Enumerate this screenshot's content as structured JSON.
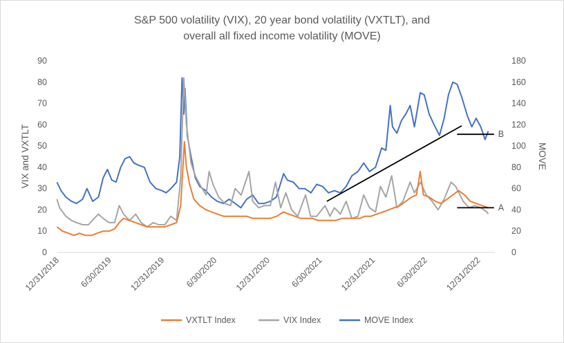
{
  "chart_data": {
    "type": "line",
    "title_line1": "S&P 500 volatility (VIX), 20 year bond volatility (VXTLT), and",
    "title_line2": "overall all fixed income volatility (MOVE)",
    "ylabel_left": "VIX and VXTLT",
    "ylabel_right": "MOVE",
    "ylim_left": [
      0,
      90
    ],
    "ylim_right": [
      0,
      180
    ],
    "left_ticks": [
      "0",
      "10",
      "20",
      "30",
      "40",
      "50",
      "60",
      "70",
      "80",
      "90"
    ],
    "right_ticks": [
      "0",
      "20",
      "40",
      "60",
      "80",
      "100",
      "120",
      "140",
      "160",
      "180"
    ],
    "x_ticks": [
      "12/31/2018",
      "6/30/2019",
      "12/31/2019",
      "6/30/2020",
      "12/31/2020",
      "6/30/2021",
      "12/31/2021",
      "6/30/2022",
      "12/31/2022"
    ],
    "series": [
      {
        "name": "VXTLT Index",
        "color": "#ED7D31",
        "axis": "left",
        "points": [
          [
            "2019-01-01",
            12
          ],
          [
            "2019-01-20",
            10
          ],
          [
            "2019-02-10",
            9
          ],
          [
            "2019-03-01",
            8
          ],
          [
            "2019-03-20",
            9
          ],
          [
            "2019-04-10",
            8
          ],
          [
            "2019-05-01",
            8
          ],
          [
            "2019-05-20",
            9
          ],
          [
            "2019-06-10",
            10
          ],
          [
            "2019-07-01",
            10
          ],
          [
            "2019-07-20",
            11
          ],
          [
            "2019-08-05",
            14
          ],
          [
            "2019-08-20",
            16
          ],
          [
            "2019-09-10",
            15
          ],
          [
            "2019-10-01",
            14
          ],
          [
            "2019-10-20",
            13
          ],
          [
            "2019-11-10",
            12
          ],
          [
            "2019-12-01",
            12
          ],
          [
            "2019-12-20",
            12
          ],
          [
            "2020-01-10",
            12
          ],
          [
            "2020-01-31",
            13
          ],
          [
            "2020-02-20",
            14
          ],
          [
            "2020-03-05",
            22
          ],
          [
            "2020-03-12",
            38
          ],
          [
            "2020-03-18",
            52
          ],
          [
            "2020-03-25",
            40
          ],
          [
            "2020-04-05",
            32
          ],
          [
            "2020-04-20",
            25
          ],
          [
            "2020-05-10",
            22
          ],
          [
            "2020-06-01",
            20
          ],
          [
            "2020-06-20",
            19
          ],
          [
            "2020-07-10",
            18
          ],
          [
            "2020-08-01",
            17
          ],
          [
            "2020-08-20",
            17
          ],
          [
            "2020-09-10",
            17
          ],
          [
            "2020-10-01",
            17
          ],
          [
            "2020-10-20",
            17
          ],
          [
            "2020-11-10",
            16
          ],
          [
            "2020-12-01",
            16
          ],
          [
            "2020-12-20",
            16
          ],
          [
            "2021-01-10",
            16
          ],
          [
            "2021-02-01",
            17
          ],
          [
            "2021-02-25",
            19
          ],
          [
            "2021-03-15",
            18
          ],
          [
            "2021-04-05",
            17
          ],
          [
            "2021-04-25",
            16
          ],
          [
            "2021-05-15",
            16
          ],
          [
            "2021-06-05",
            16
          ],
          [
            "2021-06-25",
            15
          ],
          [
            "2021-07-15",
            15
          ],
          [
            "2021-08-05",
            15
          ],
          [
            "2021-08-25",
            15
          ],
          [
            "2021-09-15",
            16
          ],
          [
            "2021-10-05",
            16
          ],
          [
            "2021-10-25",
            16
          ],
          [
            "2021-11-15",
            16
          ],
          [
            "2021-12-05",
            17
          ],
          [
            "2021-12-25",
            17
          ],
          [
            "2022-01-15",
            18
          ],
          [
            "2022-02-05",
            19
          ],
          [
            "2022-02-25",
            20
          ],
          [
            "2022-03-15",
            21
          ],
          [
            "2022-04-05",
            22
          ],
          [
            "2022-04-25",
            24
          ],
          [
            "2022-05-15",
            26
          ],
          [
            "2022-06-01",
            27
          ],
          [
            "2022-06-14",
            38
          ],
          [
            "2022-06-25",
            27
          ],
          [
            "2022-07-15",
            26
          ],
          [
            "2022-08-05",
            24
          ],
          [
            "2022-08-25",
            23
          ],
          [
            "2022-09-15",
            25
          ],
          [
            "2022-10-05",
            27
          ],
          [
            "2022-10-25",
            29
          ],
          [
            "2022-11-15",
            27
          ],
          [
            "2022-12-05",
            24
          ],
          [
            "2022-12-25",
            23
          ],
          [
            "2023-01-15",
            22
          ],
          [
            "2023-02-05",
            21
          ]
        ]
      },
      {
        "name": "VIX Index",
        "color": "#A5A5A5",
        "axis": "left",
        "points": [
          [
            "2019-01-01",
            25
          ],
          [
            "2019-01-10",
            21
          ],
          [
            "2019-02-01",
            17
          ],
          [
            "2019-02-20",
            15
          ],
          [
            "2019-03-10",
            14
          ],
          [
            "2019-04-01",
            13
          ],
          [
            "2019-04-20",
            13
          ],
          [
            "2019-05-10",
            16
          ],
          [
            "2019-05-25",
            18
          ],
          [
            "2019-06-10",
            16
          ],
          [
            "2019-07-01",
            14
          ],
          [
            "2019-07-20",
            14
          ],
          [
            "2019-08-05",
            22
          ],
          [
            "2019-08-20",
            18
          ],
          [
            "2019-09-10",
            15
          ],
          [
            "2019-10-01",
            18
          ],
          [
            "2019-10-20",
            14
          ],
          [
            "2019-11-10",
            12
          ],
          [
            "2019-12-01",
            14
          ],
          [
            "2019-12-20",
            13
          ],
          [
            "2020-01-10",
            13
          ],
          [
            "2020-01-31",
            17
          ],
          [
            "2020-02-20",
            15
          ],
          [
            "2020-03-05",
            35
          ],
          [
            "2020-03-16",
            82
          ],
          [
            "2020-03-25",
            60
          ],
          [
            "2020-04-10",
            42
          ],
          [
            "2020-04-25",
            36
          ],
          [
            "2020-05-10",
            32
          ],
          [
            "2020-06-01",
            27
          ],
          [
            "2020-06-12",
            38
          ],
          [
            "2020-06-25",
            32
          ],
          [
            "2020-07-15",
            26
          ],
          [
            "2020-08-05",
            23
          ],
          [
            "2020-08-25",
            22
          ],
          [
            "2020-09-10",
            30
          ],
          [
            "2020-10-01",
            27
          ],
          [
            "2020-10-28",
            38
          ],
          [
            "2020-11-10",
            24
          ],
          [
            "2020-12-01",
            21
          ],
          [
            "2020-12-20",
            22
          ],
          [
            "2021-01-10",
            22
          ],
          [
            "2021-01-28",
            33
          ],
          [
            "2021-02-15",
            21
          ],
          [
            "2021-03-05",
            28
          ],
          [
            "2021-03-25",
            20
          ],
          [
            "2021-04-15",
            17
          ],
          [
            "2021-05-12",
            27
          ],
          [
            "2021-05-30",
            17
          ],
          [
            "2021-06-20",
            17
          ],
          [
            "2021-07-19",
            22
          ],
          [
            "2021-08-05",
            17
          ],
          [
            "2021-08-20",
            21
          ],
          [
            "2021-09-10",
            18
          ],
          [
            "2021-09-30",
            24
          ],
          [
            "2021-10-20",
            16
          ],
          [
            "2021-11-10",
            17
          ],
          [
            "2021-11-30",
            27
          ],
          [
            "2021-12-20",
            21
          ],
          [
            "2022-01-10",
            19
          ],
          [
            "2022-01-27",
            31
          ],
          [
            "2022-02-15",
            26
          ],
          [
            "2022-03-07",
            36
          ],
          [
            "2022-03-25",
            21
          ],
          [
            "2022-04-15",
            24
          ],
          [
            "2022-05-10",
            33
          ],
          [
            "2022-05-25",
            28
          ],
          [
            "2022-06-15",
            33
          ],
          [
            "2022-07-05",
            27
          ],
          [
            "2022-07-25",
            24
          ],
          [
            "2022-08-15",
            20
          ],
          [
            "2022-09-05",
            25
          ],
          [
            "2022-09-29",
            33
          ],
          [
            "2022-10-15",
            31
          ],
          [
            "2022-11-10",
            24
          ],
          [
            "2022-12-01",
            21
          ],
          [
            "2022-12-20",
            22
          ],
          [
            "2023-01-10",
            21
          ],
          [
            "2023-01-31",
            19
          ],
          [
            "2023-02-05",
            18
          ]
        ]
      },
      {
        "name": "MOVE Index",
        "color": "#4472C4",
        "axis": "right",
        "points": [
          [
            "2019-01-01",
            66
          ],
          [
            "2019-01-15",
            58
          ],
          [
            "2019-02-01",
            52
          ],
          [
            "2019-02-20",
            48
          ],
          [
            "2019-03-10",
            46
          ],
          [
            "2019-03-31",
            50
          ],
          [
            "2019-04-15",
            60
          ],
          [
            "2019-05-05",
            48
          ],
          [
            "2019-05-25",
            52
          ],
          [
            "2019-06-10",
            70
          ],
          [
            "2019-06-25",
            78
          ],
          [
            "2019-07-10",
            68
          ],
          [
            "2019-07-25",
            66
          ],
          [
            "2019-08-10",
            80
          ],
          [
            "2019-08-25",
            88
          ],
          [
            "2019-09-10",
            90
          ],
          [
            "2019-09-25",
            84
          ],
          [
            "2019-10-10",
            82
          ],
          [
            "2019-10-31",
            80
          ],
          [
            "2019-11-20",
            66
          ],
          [
            "2019-12-10",
            60
          ],
          [
            "2019-12-31",
            58
          ],
          [
            "2020-01-15",
            56
          ],
          [
            "2020-01-31",
            60
          ],
          [
            "2020-02-20",
            66
          ],
          [
            "2020-03-02",
            90
          ],
          [
            "2020-03-10",
            164
          ],
          [
            "2020-03-16",
            130
          ],
          [
            "2020-03-20",
            154
          ],
          [
            "2020-03-28",
            110
          ],
          [
            "2020-04-10",
            90
          ],
          [
            "2020-04-25",
            70
          ],
          [
            "2020-05-10",
            62
          ],
          [
            "2020-05-31",
            58
          ],
          [
            "2020-06-20",
            52
          ],
          [
            "2020-07-10",
            48
          ],
          [
            "2020-07-31",
            46
          ],
          [
            "2020-08-20",
            50
          ],
          [
            "2020-09-10",
            46
          ],
          [
            "2020-09-30",
            42
          ],
          [
            "2020-10-20",
            50
          ],
          [
            "2020-11-10",
            54
          ],
          [
            "2020-11-30",
            46
          ],
          [
            "2020-12-20",
            46
          ],
          [
            "2021-01-10",
            48
          ],
          [
            "2021-01-31",
            52
          ],
          [
            "2021-02-25",
            74
          ],
          [
            "2021-03-10",
            68
          ],
          [
            "2021-03-31",
            66
          ],
          [
            "2021-04-20",
            60
          ],
          [
            "2021-05-10",
            60
          ],
          [
            "2021-05-31",
            56
          ],
          [
            "2021-06-20",
            64
          ],
          [
            "2021-07-10",
            62
          ],
          [
            "2021-07-31",
            56
          ],
          [
            "2021-08-20",
            58
          ],
          [
            "2021-09-10",
            56
          ],
          [
            "2021-09-30",
            62
          ],
          [
            "2021-10-20",
            72
          ],
          [
            "2021-11-10",
            76
          ],
          [
            "2021-11-30",
            84
          ],
          [
            "2021-12-20",
            76
          ],
          [
            "2022-01-10",
            80
          ],
          [
            "2022-01-31",
            98
          ],
          [
            "2022-02-15",
            96
          ],
          [
            "2022-03-02",
            138
          ],
          [
            "2022-03-10",
            118
          ],
          [
            "2022-03-25",
            112
          ],
          [
            "2022-04-10",
            124
          ],
          [
            "2022-04-25",
            130
          ],
          [
            "2022-05-10",
            138
          ],
          [
            "2022-05-25",
            118
          ],
          [
            "2022-06-14",
            150
          ],
          [
            "2022-06-28",
            148
          ],
          [
            "2022-07-15",
            130
          ],
          [
            "2022-08-01",
            120
          ],
          [
            "2022-08-20",
            110
          ],
          [
            "2022-09-05",
            126
          ],
          [
            "2022-09-20",
            148
          ],
          [
            "2022-10-05",
            160
          ],
          [
            "2022-10-20",
            158
          ],
          [
            "2022-11-05",
            146
          ],
          [
            "2022-11-25",
            128
          ],
          [
            "2022-12-10",
            118
          ],
          [
            "2022-12-25",
            126
          ],
          [
            "2023-01-10",
            118
          ],
          [
            "2023-01-25",
            106
          ],
          [
            "2023-02-05",
            114
          ]
        ]
      }
    ],
    "annotations": [
      {
        "label": "A",
        "x1": "2022-10-20",
        "x2": "2023-02-25",
        "y": 21,
        "axis": "left"
      },
      {
        "label": "B",
        "x1": "2022-10-20",
        "x2": "2023-02-25",
        "y": 111,
        "axis": "right"
      }
    ],
    "trend_line": {
      "x1": "2021-07-25",
      "y1": 48,
      "x2": "2022-11-05",
      "y2": 119,
      "axis": "right"
    },
    "grid": false,
    "legend_position": "bottom"
  }
}
